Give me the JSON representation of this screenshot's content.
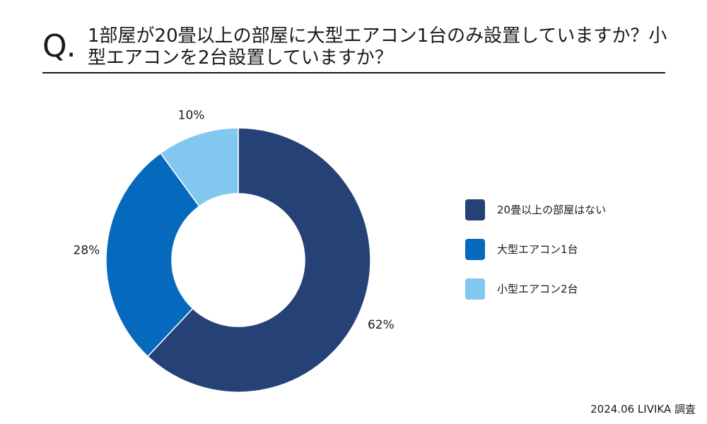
{
  "question": {
    "mark": "Q.",
    "text": "1部屋が20畳以上の部屋に大型エアコン1台のみ設置していますか？小型エアコンを2台設置していますか？"
  },
  "chart_data": {
    "type": "pie",
    "variant": "donut",
    "title": "1部屋が20畳以上の部屋に大型エアコン1台のみ設置していますか？小型エアコンを2台設置していますか？",
    "categories": [
      "20畳以上の部屋はない",
      "大型エアコン1台",
      "小型エアコン2台"
    ],
    "values": [
      62,
      28,
      10
    ],
    "labels": [
      "62%",
      "28%",
      "10%"
    ],
    "unit": "%",
    "colors": [
      "#254175",
      "#0569BE",
      "#82C7EF"
    ],
    "legend_position": "right"
  },
  "source": "2024.06 LIVIKA 調査"
}
